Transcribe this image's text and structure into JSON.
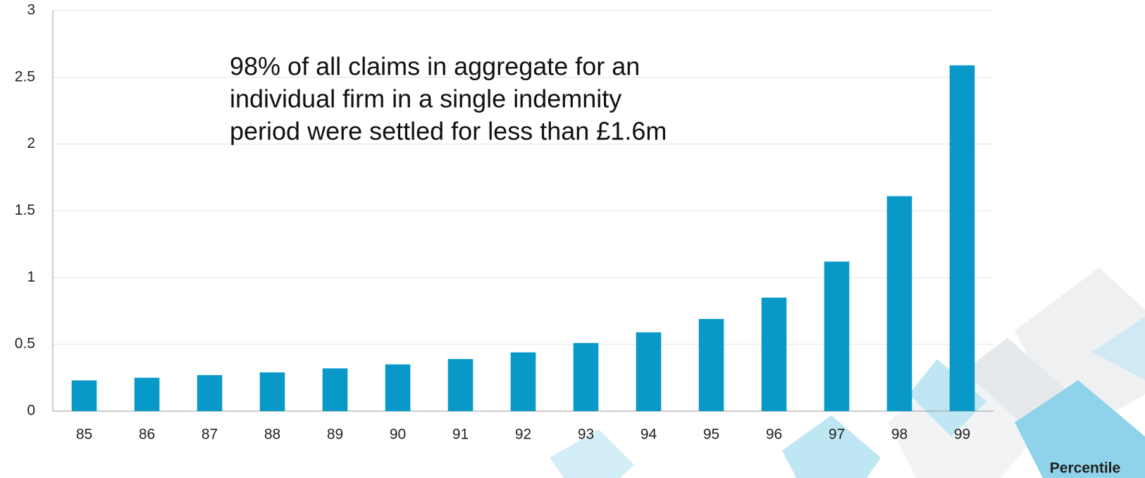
{
  "chart_data": {
    "type": "bar",
    "annotation": [
      "98% of all claims in aggregate for an",
      "individual firm in a single indemnity",
      "period were settled for less than £1.6m"
    ],
    "x_label": "Percentile",
    "categories": [
      "85",
      "86",
      "87",
      "88",
      "89",
      "90",
      "91",
      "92",
      "93",
      "94",
      "95",
      "96",
      "97",
      "98",
      "99"
    ],
    "values": [
      0.23,
      0.25,
      0.27,
      0.29,
      0.32,
      0.35,
      0.39,
      0.44,
      0.51,
      0.59,
      0.69,
      0.85,
      1.12,
      1.61,
      2.59
    ],
    "color": "#0899c8",
    "ylim": [
      0,
      3
    ],
    "yticks": [
      0,
      0.5,
      1,
      1.5,
      2,
      2.5,
      3
    ],
    "grid": true
  }
}
